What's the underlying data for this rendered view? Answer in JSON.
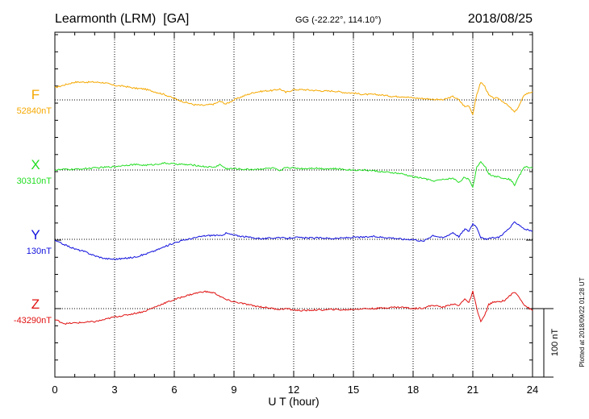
{
  "header": {
    "station": "Learmonth (LRM)  [GA]",
    "coords": "GG (-22.22°, 114.10°)",
    "date": "2018/08/25"
  },
  "footer_note": "Plotted at 2018/09/22 01:28 UT",
  "scale_bar_label": "100 nT",
  "chart_data": {
    "type": "line",
    "xlabel": "U T (hour)",
    "xlim": [
      0,
      24
    ],
    "xticks": [
      0,
      3,
      6,
      9,
      12,
      15,
      18,
      21,
      24
    ],
    "grid": true,
    "units_per_100nT_bar": 100,
    "series": [
      {
        "name": "F",
        "baseline_label": "52840nT",
        "baseline": 52840,
        "color": "#f5a800",
        "x": [
          0,
          0.5,
          1,
          1.5,
          2,
          2.5,
          3,
          3.5,
          4,
          4.5,
          5,
          5.5,
          6,
          6.5,
          7,
          7.5,
          8,
          8.3,
          8.6,
          9,
          9.5,
          10,
          10.5,
          11,
          11.3,
          11.6,
          12,
          12.5,
          13,
          13.5,
          14,
          14.5,
          15,
          15.5,
          16,
          16.5,
          17,
          17.5,
          18,
          18.5,
          19,
          19.5,
          20,
          20.3,
          20.6,
          20.8,
          21.0,
          21.2,
          21.4,
          21.6,
          21.8,
          22.0,
          22.3,
          22.6,
          22.9,
          23.1,
          23.3,
          23.6,
          24
        ],
        "y": [
          52858,
          52862,
          52866,
          52866,
          52866,
          52865,
          52861,
          52860,
          52857,
          52856,
          52852,
          52848,
          52842,
          52837,
          52833,
          52832,
          52834,
          52838,
          52834,
          52840,
          52846,
          52851,
          52853,
          52854,
          52856,
          52851,
          52855,
          52855,
          52854,
          52853,
          52853,
          52851,
          52850,
          52848,
          52848,
          52847,
          52845,
          52845,
          52843,
          52842,
          52841,
          52840,
          52845,
          52840,
          52830,
          52832,
          52819,
          52848,
          52866,
          52860,
          52847,
          52843,
          52842,
          52836,
          52828,
          52822,
          52830,
          52848,
          52852
        ]
      },
      {
        "name": "X",
        "baseline_label": "30310nT",
        "baseline": 30310,
        "color": "#22dd22",
        "x": [
          0,
          0.5,
          1,
          1.5,
          2,
          2.5,
          3,
          3.5,
          4,
          4.5,
          5,
          5.5,
          6,
          6.5,
          7,
          7.5,
          8,
          8.3,
          8.6,
          9,
          9.5,
          10,
          10.5,
          11,
          11.3,
          11.6,
          12,
          12.5,
          13,
          13.5,
          14,
          14.5,
          15,
          15.5,
          16,
          16.5,
          17,
          17.5,
          18,
          18.5,
          19,
          19.5,
          20,
          20.3,
          20.6,
          20.8,
          21.0,
          21.2,
          21.4,
          21.6,
          21.8,
          22.0,
          22.3,
          22.6,
          22.9,
          23.1,
          23.3,
          23.6,
          24
        ],
        "y": [
          30310,
          30311,
          30311,
          30312,
          30313,
          30314,
          30315,
          30317,
          30318,
          30317,
          30318,
          30320,
          30319,
          30318,
          30317,
          30315,
          30314,
          30318,
          30312,
          30312,
          30311,
          30311,
          30312,
          30313,
          30308,
          30314,
          30313,
          30312,
          30313,
          30312,
          30312,
          30311,
          30310,
          30310,
          30309,
          30307,
          30306,
          30304,
          30300,
          30298,
          30294,
          30296,
          30298,
          30292,
          30300,
          30296,
          30284,
          30315,
          30322,
          30316,
          30305,
          30301,
          30300,
          30298,
          30296,
          30288,
          30300,
          30315,
          30313
        ]
      },
      {
        "name": "Y",
        "baseline_label": "130nT",
        "baseline": 130,
        "color": "#1010dd",
        "x": [
          0,
          0.5,
          1,
          1.5,
          2,
          2.5,
          3,
          3.5,
          4,
          4.5,
          5,
          5.5,
          6,
          6.5,
          7,
          7.5,
          8,
          8.3,
          8.6,
          9,
          9.5,
          10,
          10.5,
          11,
          11.3,
          11.6,
          12,
          12.5,
          13,
          13.5,
          14,
          14.5,
          15,
          15.5,
          16,
          16.5,
          17,
          17.5,
          18,
          18.5,
          19,
          19.5,
          20,
          20.3,
          20.6,
          20.8,
          21.0,
          21.2,
          21.4,
          21.6,
          21.8,
          22.0,
          22.3,
          22.6,
          22.9,
          23.1,
          23.3,
          23.6,
          24
        ],
        "y": [
          128,
          122,
          116,
          112,
          106,
          102,
          101,
          102,
          104,
          108,
          113,
          119,
          125,
          129,
          132,
          135,
          136,
          135,
          139,
          136,
          134,
          132,
          131,
          132,
          133,
          131,
          133,
          132,
          132,
          132,
          131,
          132,
          133,
          133,
          134,
          133,
          132,
          130,
          130,
          127,
          136,
          132,
          140,
          134,
          145,
          142,
          153,
          148,
          133,
          130,
          131,
          132,
          133,
          140,
          148,
          155,
          152,
          145,
          142
        ]
      },
      {
        "name": "Z",
        "baseline_label": "-43290nT",
        "baseline": -43290,
        "color": "#e01010",
        "x": [
          0,
          0.5,
          1,
          1.5,
          2,
          2.5,
          3,
          3.5,
          4,
          4.5,
          5,
          5.5,
          6,
          6.5,
          7,
          7.5,
          8,
          8.3,
          8.6,
          9,
          9.5,
          10,
          10.5,
          11,
          11.3,
          11.6,
          12,
          12.5,
          13,
          13.5,
          14,
          14.5,
          15,
          15.5,
          16,
          16.5,
          17,
          17.5,
          18,
          18.5,
          19,
          19.5,
          20,
          20.3,
          20.6,
          20.8,
          21.0,
          21.2,
          21.4,
          21.6,
          21.8,
          22.0,
          22.3,
          22.6,
          22.9,
          23.1,
          23.3,
          23.6,
          24
        ],
        "y": [
          -43306,
          -43312,
          -43311,
          -43310,
          -43309,
          -43306,
          -43302,
          -43300,
          -43297,
          -43294,
          -43288,
          -43282,
          -43277,
          -43272,
          -43268,
          -43265,
          -43267,
          -43272,
          -43277,
          -43280,
          -43283,
          -43286,
          -43288,
          -43290,
          -43291,
          -43290,
          -43292,
          -43293,
          -43292,
          -43292,
          -43291,
          -43292,
          -43291,
          -43290,
          -43290,
          -43289,
          -43288,
          -43288,
          -43290,
          -43289,
          -43285,
          -43288,
          -43283,
          -43286,
          -43275,
          -43282,
          -43265,
          -43290,
          -43309,
          -43300,
          -43284,
          -43281,
          -43280,
          -43278,
          -43270,
          -43266,
          -43272,
          -43285,
          -43293
        ]
      }
    ]
  }
}
